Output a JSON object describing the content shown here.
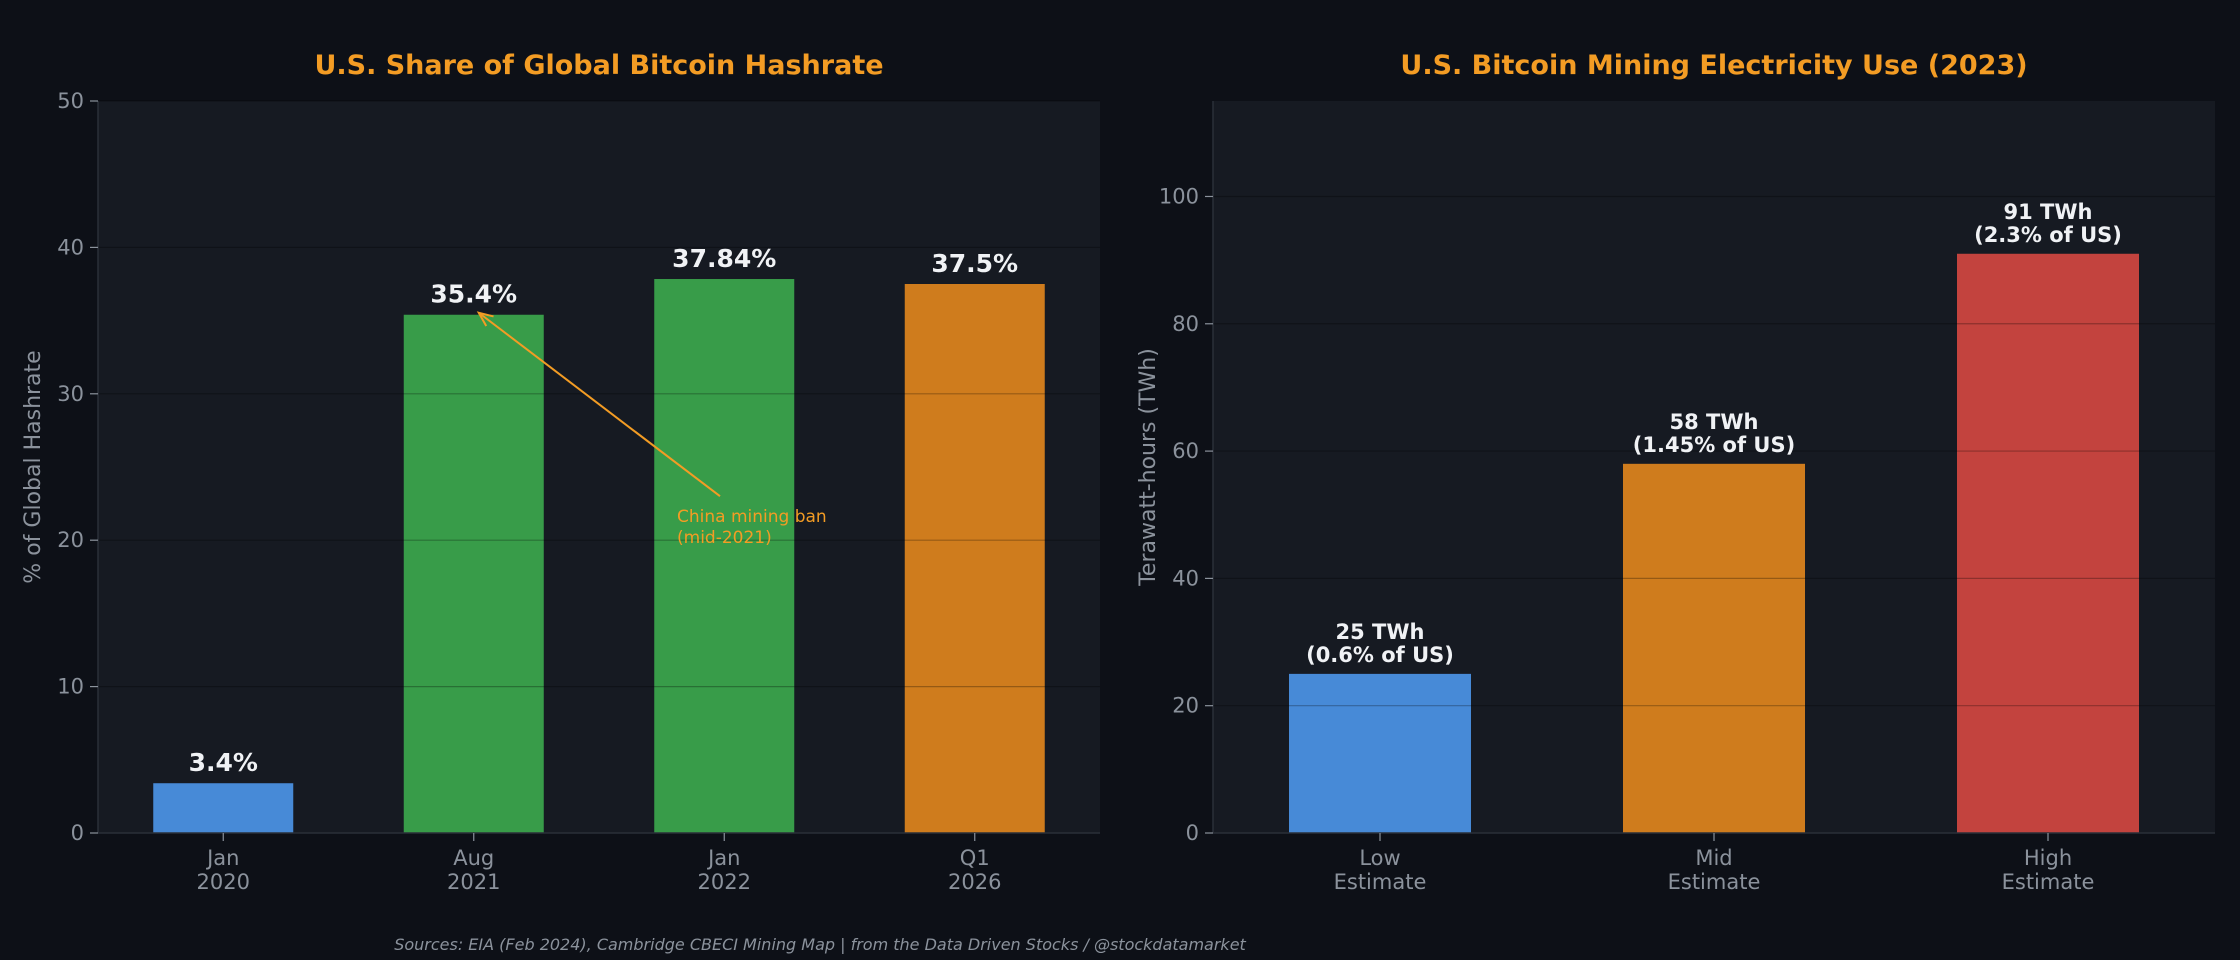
{
  "colors": {
    "background": "#0d1017",
    "plot_background": "#161a22",
    "title": "#f39c24",
    "tick_text": "#8b929c",
    "data_label": "#f0f2f5",
    "annotation": "#f39c24",
    "blue": "#4a90e2",
    "green": "#3aa34c",
    "orange": "#d9821e",
    "red": "#cc4640"
  },
  "source_text": "Sources: EIA (Feb 2024), Cambridge CBECI Mining Map | from the Data Driven Stocks / @stockdatamarket",
  "chart_data": [
    {
      "type": "bar",
      "title": "U.S. Share of Global Bitcoin Hashrate",
      "xlabel": "",
      "ylabel": "% of Global Hashrate",
      "ylim": [
        0,
        50
      ],
      "yticks": [
        0,
        10,
        20,
        30,
        40,
        50
      ],
      "grid": true,
      "categories": [
        [
          "Jan",
          "2020"
        ],
        [
          "Aug",
          "2021"
        ],
        [
          "Jan",
          "2022"
        ],
        [
          "Q1",
          "2026"
        ]
      ],
      "values": [
        3.4,
        35.4,
        37.84,
        37.5
      ],
      "data_labels": [
        [
          "3.4%"
        ],
        [
          "35.4%"
        ],
        [
          "37.84%"
        ],
        [
          "37.5%"
        ]
      ],
      "bar_colors": [
        "#4a90e2",
        "#3aa34c",
        "#3aa34c",
        "#d9821e"
      ],
      "annotation": {
        "text": [
          "China mining ban",
          "(mid-2021)"
        ],
        "points_to_category": 1,
        "points_to_value": 35.4,
        "text_at_value": 20
      }
    },
    {
      "type": "bar",
      "title": "U.S. Bitcoin Mining Electricity Use (2023)",
      "xlabel": "",
      "ylabel": "Terawatt-hours (TWh)",
      "ylim": [
        0,
        115
      ],
      "yticks": [
        0,
        20,
        40,
        60,
        80,
        100
      ],
      "grid": true,
      "categories": [
        [
          "Low",
          "Estimate"
        ],
        [
          "Mid",
          "Estimate"
        ],
        [
          "High",
          "Estimate"
        ]
      ],
      "values": [
        25,
        58,
        91
      ],
      "data_labels": [
        [
          "25 TWh",
          "(0.6% of US)"
        ],
        [
          "58 TWh",
          "(1.45% of US)"
        ],
        [
          "91 TWh",
          "(2.3% of US)"
        ]
      ],
      "bar_colors": [
        "#4a90e2",
        "#d9821e",
        "#cc4640"
      ]
    }
  ]
}
